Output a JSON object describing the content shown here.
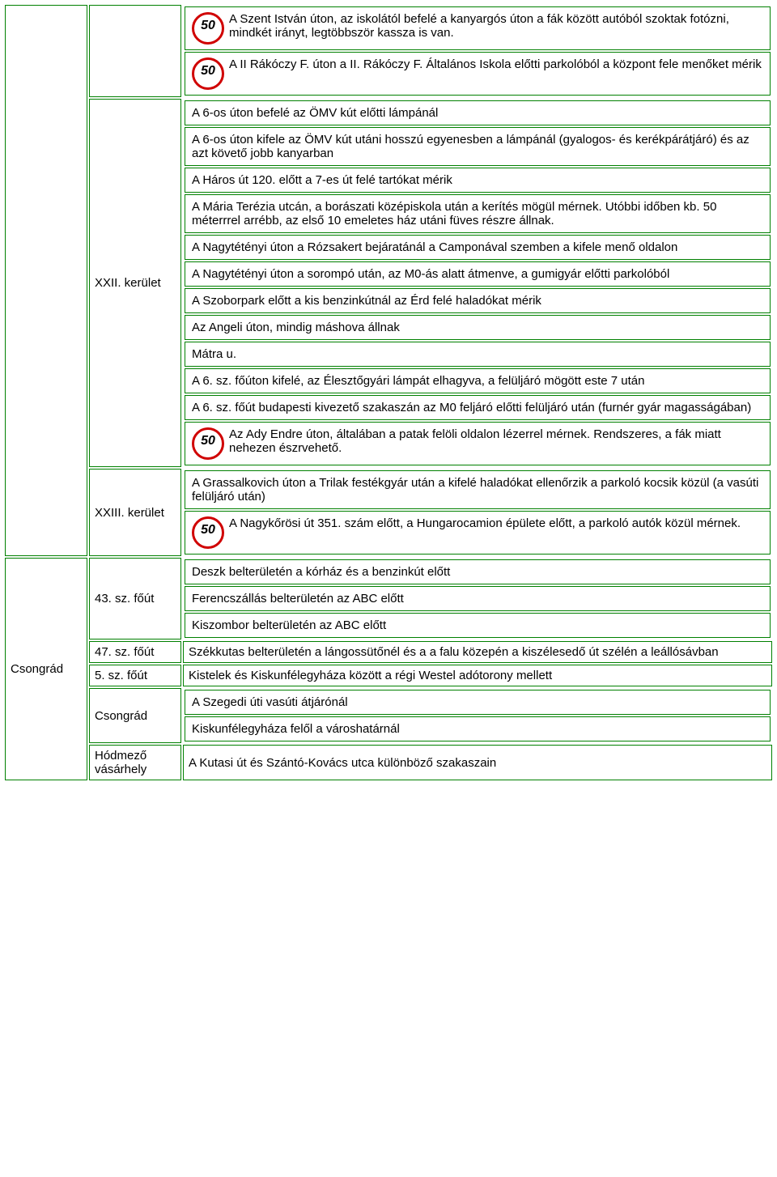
{
  "speed_label": "50",
  "regions": {
    "r1": {
      "label": ""
    },
    "r2": {
      "label": "Csongrád"
    }
  },
  "districts": {
    "d0": {
      "label": ""
    },
    "d1": {
      "label": "XXII. kerület"
    },
    "d2": {
      "label": "XXIII. kerület"
    },
    "d3": {
      "label": "43. sz. főút"
    },
    "d4": {
      "label": "47. sz. főút"
    },
    "d5": {
      "label": "5. sz. főút"
    },
    "d6": {
      "label": "Csongrád"
    },
    "d7": {
      "label": "Hódmező vásárhely"
    }
  },
  "items": {
    "i1": "A Szent István úton, az iskolától befelé a kanyargós úton a fák között autóból szoktak fotózni, mindkét irányt, legtöbbször kassza is van.",
    "i2": "A II Rákóczy F. úton a II. Rákóczy F. Általános Iskola előtti parkolóból a központ fele menőket mérik",
    "i3": "A 6-os úton befelé az ÖMV kút előtti lámpánál",
    "i4": "A 6-os úton kifele az ÖMV kút utáni hosszú egyenesben a lámpánál (gyalogos- és kerékpárátjáró) és az azt követő jobb kanyarban",
    "i5": "A Háros út 120. előtt a 7-es út felé tartókat mérik",
    "i6": "A Mária Terézia utcán, a borászati középiskola után a kerítés mögül mérnek. Utóbbi időben kb. 50 méterrrel arrébb, az első 10 emeletes ház utáni füves részre állnak.",
    "i7": "A Nagytétényi úton a Rózsakert bejáratánál a Camponával szemben a kifele menő oldalon",
    "i8": "A Nagytétényi úton a sorompó után, az M0-ás alatt átmenve, a gumigyár előtti parkolóból",
    "i9": "A Szoborpark előtt a kis benzinkútnál az Érd felé haladókat mérik",
    "i10": "Az Angeli úton, mindig máshova állnak",
    "i11": "Mátra u.",
    "i12": "A 6. sz. főúton kifelé, az Élesztőgyári lámpát elhagyva, a felüljáró mögött este 7 után",
    "i13": "A 6. sz. főút budapesti kivezető szakaszán az M0 feljáró előtti felüljáró után (furnér gyár magasságában)",
    "i14": "Az Ady Endre úton, általában a patak felöli oldalon lézerrel mérnek. Rendszeres, a fák miatt nehezen észrvehető.",
    "i15": "A Grassalkovich úton a Trilak festékgyár után a kifelé haladókat ellenőrzik a parkoló kocsik közül (a vasúti felüljáró után)",
    "i16": "A Nagykőrösi út 351. szám előtt, a Hungarocamion épülete előtt, a parkoló autók közül mérnek.",
    "i17": "Deszk belterületén a kórház és a benzinkút előtt",
    "i18": "Ferencszállás belterületén az ABC előtt",
    "i19": "Kiszombor belterületén az ABC előtt",
    "i20": "Székkutas belterületén a lángossütőnél és a a falu közepén a kiszélesedő út szélén a leállósávban",
    "i21": "Kistelek és Kiskunfélegyháza között a régi Westel adótorony mellett",
    "i22": "A Szegedi úti vasúti átjárónál",
    "i23": "Kiskunfélegyháza felől a városhatárnál",
    "i24": "A Kutasi út és Szántó-Kovács utca különböző szakaszain"
  }
}
